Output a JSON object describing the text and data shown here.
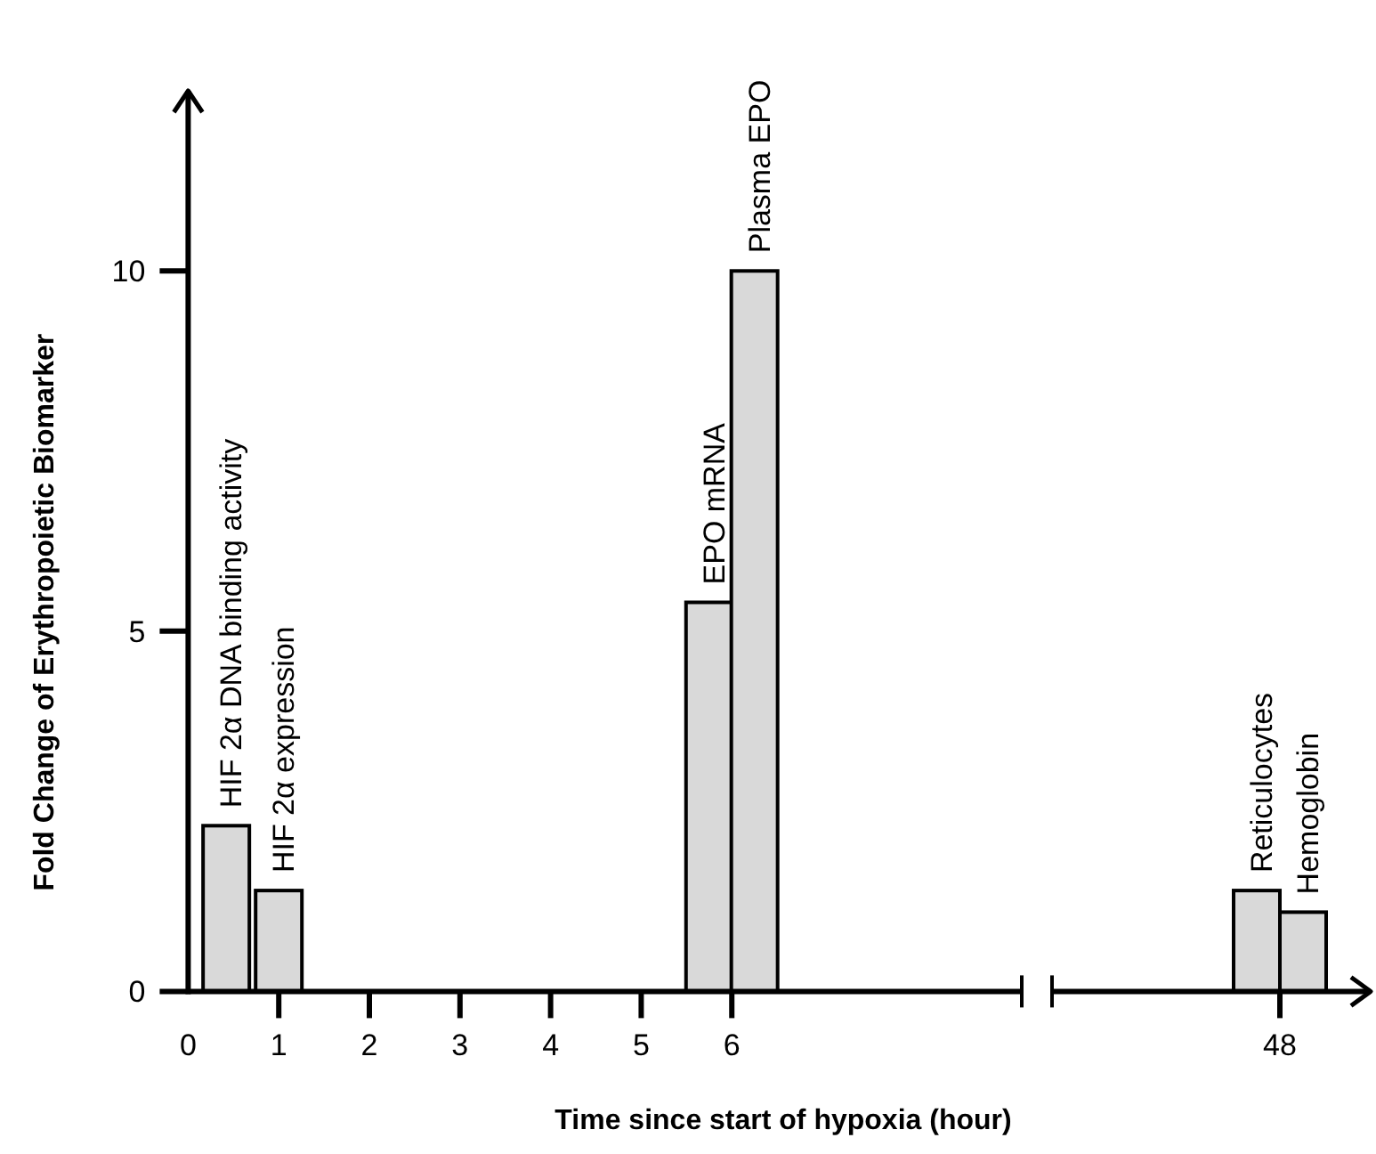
{
  "chart_data": [
    {
      "type": "bar",
      "x": [
        0.42,
        1,
        5.75,
        6.25
      ],
      "values": [
        2.3,
        1.4,
        5.4,
        10
      ],
      "color": "#d9d9d9",
      "xlim": [
        0,
        9.2
      ],
      "xticks": [
        0,
        1,
        2,
        3,
        4,
        5,
        6
      ],
      "ylim": [
        0,
        12.5
      ],
      "yticks": [
        0,
        5,
        10
      ],
      "xlabel": "Time since start of hypoxia (hour)",
      "ylabel": "Fold Change of Erythropoietic Biomarker",
      "annotations": [
        {
          "text": "HIF 2α DNA binding activity",
          "x": 0.42,
          "y": 2.3
        },
        {
          "text": "HIF 2α expression",
          "x": 1,
          "y": 1.4
        },
        {
          "text": "EPO mRNA",
          "x": 5.75,
          "y": 5.4
        },
        {
          "text": "Plasma EPO",
          "x": 6.25,
          "y": 10
        }
      ]
    },
    {
      "type": "bar",
      "categories": [
        "48"
      ],
      "ylim": [
        0,
        10
      ],
      "yticks": [
        0,
        5,
        10
      ],
      "tick_labels": "x",
      "series": [
        {
          "color": "#d9d9d9",
          "values": [
            1.4
          ]
        },
        {
          "color": "#d9d9d9",
          "values": [
            1.1
          ]
        }
      ],
      "annotations": [
        {
          "text": "Reticulocytes",
          "x": "48",
          "y": 1.4
        },
        {
          "text": "Hemoglobin",
          "x": "48",
          "y": 1.1
        }
      ]
    }
  ]
}
